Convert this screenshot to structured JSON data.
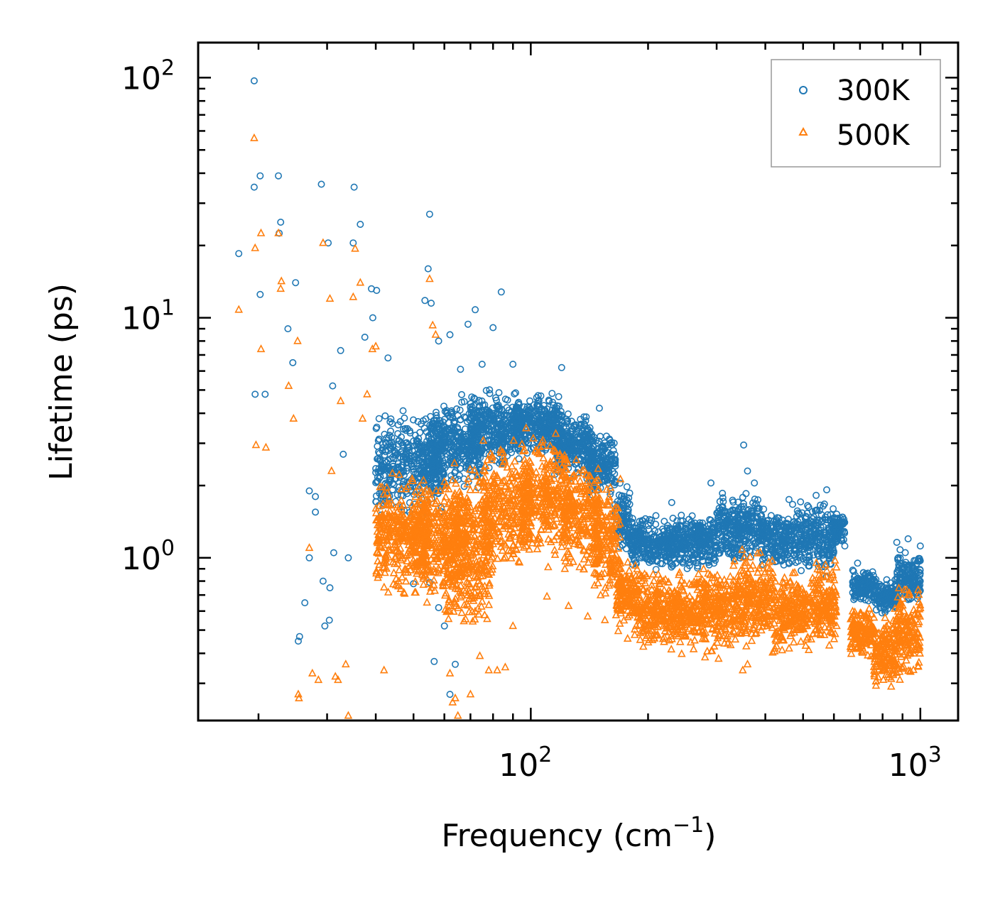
{
  "chart_data": {
    "type": "scatter",
    "title": "",
    "xlabel": "Frequency (cm",
    "xlabel_sup": "−1",
    "xlabel_tail": ")",
    "ylabel": "Lifetime (ps)",
    "xscale": "log",
    "yscale": "log",
    "xlim": [
      14,
      1250
    ],
    "ylim": [
      0.21,
      140
    ],
    "x_ticks": [
      {
        "value": 100,
        "base": "10",
        "exp": "2"
      },
      {
        "value": 1000,
        "base": "10",
        "exp": "3"
      }
    ],
    "y_ticks": [
      {
        "value": 1,
        "base": "10",
        "exp": "0"
      },
      {
        "value": 10,
        "base": "10",
        "exp": "1"
      },
      {
        "value": 100,
        "base": "10",
        "exp": "2"
      }
    ],
    "legend": {
      "position": "top-right",
      "entries": [
        "300K",
        "500K"
      ]
    },
    "series": [
      {
        "name": "300K",
        "color": "#1f77b4",
        "marker": "circle-open",
        "points": [
          [
            17.8,
            18.5
          ],
          [
            19.5,
            97
          ],
          [
            19.5,
            35
          ],
          [
            20.2,
            39
          ],
          [
            20.2,
            12.5
          ],
          [
            19.6,
            4.8
          ],
          [
            20.8,
            4.8
          ],
          [
            22.5,
            39
          ],
          [
            22.8,
            25
          ],
          [
            22.6,
            22.5
          ],
          [
            23.8,
            9
          ],
          [
            24.5,
            6.5
          ],
          [
            24.9,
            14
          ],
          [
            26.3,
            0.65
          ],
          [
            25.3,
            0.45
          ],
          [
            25.5,
            0.47
          ],
          [
            27,
            1.9
          ],
          [
            27,
            1.0
          ],
          [
            28,
            1.8
          ],
          [
            28,
            1.55
          ],
          [
            29,
            36
          ],
          [
            29.3,
            0.8
          ],
          [
            29.6,
            0.52
          ],
          [
            30.2,
            20.5
          ],
          [
            30.5,
            0.75
          ],
          [
            30.4,
            0.55
          ],
          [
            31,
            5.2
          ],
          [
            31.2,
            1.05
          ],
          [
            32.5,
            7.3
          ],
          [
            33,
            2.7
          ],
          [
            34,
            1.0
          ],
          [
            35.2,
            35
          ],
          [
            35,
            20.5
          ],
          [
            36.5,
            24.5
          ],
          [
            37.5,
            8.3
          ],
          [
            39,
            13.2
          ],
          [
            39.3,
            10.0
          ],
          [
            40.2,
            13
          ],
          [
            43,
            6.8
          ],
          [
            47,
            4.1
          ],
          [
            55,
            27
          ],
          [
            54.5,
            16
          ],
          [
            53.5,
            11.8
          ],
          [
            55.5,
            11.5
          ],
          [
            58,
            8.0
          ],
          [
            62,
            8.5
          ],
          [
            66,
            6.1
          ],
          [
            69,
            9.4
          ],
          [
            72,
            10.8
          ],
          [
            75,
            6.4
          ],
          [
            80,
            9.1
          ],
          [
            84,
            12.8
          ],
          [
            90,
            6.4
          ],
          [
            56.5,
            0.37
          ],
          [
            58,
            0.62
          ],
          [
            60,
            0.52
          ],
          [
            62,
            0.27
          ],
          [
            64,
            0.36
          ],
          [
            55,
            0.79
          ],
          [
            50,
            0.78
          ],
          [
            120,
            6.2
          ],
          [
            150,
            4.2
          ],
          [
            163,
            2.8
          ],
          [
            230,
            1.7
          ],
          [
            290,
            2.05
          ],
          [
            352,
            2.95
          ],
          [
            360,
            2.3
          ],
          [
            375,
            2.05
          ],
          [
            460,
            1.75
          ],
          [
            470,
            1.67
          ],
          [
            540,
            1.82
          ],
          [
            575,
            1.92
          ],
          [
            610,
            1.52
          ],
          [
            640,
            1.12
          ],
          [
            690,
            0.95
          ],
          [
            870,
            1.16
          ],
          [
            930,
            1.2
          ],
          [
            1000,
            1.12
          ]
        ],
        "bands": [
          {
            "x": [
              40,
              60
            ],
            "y": [
              1.4,
              4.2
            ]
          },
          {
            "x": [
              55,
              75
            ],
            "y": [
              1.8,
              5.0
            ]
          },
          {
            "x": [
              70,
              95
            ],
            "y": [
              2.2,
              5.3
            ]
          },
          {
            "x": [
              90,
              120
            ],
            "y": [
              2.5,
              5.2
            ]
          },
          {
            "x": [
              115,
              145
            ],
            "y": [
              2.0,
              4.4
            ]
          },
          {
            "x": [
              140,
              165
            ],
            "y": [
              1.6,
              3.6
            ]
          },
          {
            "x": [
              165,
              180
            ],
            "y": [
              1.0,
              2.2
            ]
          },
          {
            "x": [
              180,
              230
            ],
            "y": [
              0.85,
              1.55
            ]
          },
          {
            "x": [
              230,
              300
            ],
            "y": [
              0.85,
              1.6
            ]
          },
          {
            "x": [
              300,
              390
            ],
            "y": [
              0.9,
              2.0
            ]
          },
          {
            "x": [
              390,
              480
            ],
            "y": [
              0.85,
              1.7
            ]
          },
          {
            "x": [
              480,
              600
            ],
            "y": [
              0.8,
              1.85
            ]
          },
          {
            "x": [
              600,
              640
            ],
            "y": [
              1.1,
              1.6
            ]
          },
          {
            "x": [
              670,
              770
            ],
            "y": [
              0.62,
              0.92
            ]
          },
          {
            "x": [
              770,
              870
            ],
            "y": [
              0.56,
              0.85
            ]
          },
          {
            "x": [
              870,
              1000
            ],
            "y": [
              0.62,
              1.1
            ]
          }
        ]
      },
      {
        "name": "500K",
        "color": "#ff7f0e",
        "marker": "triangle-open",
        "points": [
          [
            17.8,
            10.8
          ],
          [
            19.5,
            56
          ],
          [
            19.6,
            19.5
          ],
          [
            19.7,
            2.95
          ],
          [
            20.3,
            22.5
          ],
          [
            20.3,
            7.4
          ],
          [
            20.9,
            2.88
          ],
          [
            22.5,
            22.5
          ],
          [
            22.9,
            14.2
          ],
          [
            22.8,
            13.2
          ],
          [
            23.9,
            5.2
          ],
          [
            24.6,
            3.8
          ],
          [
            25.2,
            8.0
          ],
          [
            25.3,
            0.27
          ],
          [
            25.4,
            0.26
          ],
          [
            27,
            1.1
          ],
          [
            27.5,
            0.33
          ],
          [
            28.5,
            0.31
          ],
          [
            29.3,
            20.5
          ],
          [
            30.5,
            12
          ],
          [
            30.8,
            2.3
          ],
          [
            31.5,
            0.32
          ],
          [
            32,
            0.31
          ],
          [
            32.5,
            4.5
          ],
          [
            33.5,
            0.36
          ],
          [
            34,
            0.22
          ],
          [
            35,
            12.2
          ],
          [
            35.4,
            19.4
          ],
          [
            36.5,
            14
          ],
          [
            37,
            3.8
          ],
          [
            38,
            4.8
          ],
          [
            39.2,
            7.4
          ],
          [
            40,
            7.6
          ],
          [
            42,
            0.34
          ],
          [
            55,
            14.5
          ],
          [
            57,
            8.5
          ],
          [
            56,
            9.3
          ],
          [
            62,
            0.33
          ],
          [
            63,
            0.25
          ],
          [
            64,
            0.26
          ],
          [
            65,
            0.22
          ],
          [
            70,
            0.27
          ],
          [
            74,
            0.39
          ],
          [
            78,
            0.34
          ],
          [
            82,
            0.34
          ],
          [
            86,
            0.35
          ],
          [
            90,
            0.52
          ],
          [
            110,
            0.69
          ],
          [
            125,
            0.63
          ],
          [
            140,
            0.57
          ],
          [
            155,
            0.55
          ],
          [
            350,
            0.34
          ],
          [
            360,
            0.36
          ]
        ],
        "bands": [
          {
            "x": [
              40,
              55
            ],
            "y": [
              0.65,
              2.4
            ]
          },
          {
            "x": [
              50,
              70
            ],
            "y": [
              0.55,
              2.7
            ]
          },
          {
            "x": [
              60,
              80
            ],
            "y": [
              0.4,
              2.6
            ]
          },
          {
            "x": [
              75,
              100
            ],
            "y": [
              0.8,
              3.4
            ]
          },
          {
            "x": [
              95,
              125
            ],
            "y": [
              0.85,
              3.8
            ]
          },
          {
            "x": [
              120,
              150
            ],
            "y": [
              0.75,
              3.0
            ]
          },
          {
            "x": [
              145,
              170
            ],
            "y": [
              0.6,
              2.3
            ]
          },
          {
            "x": [
              165,
              190
            ],
            "y": [
              0.45,
              1.05
            ]
          },
          {
            "x": [
              190,
              260
            ],
            "y": [
              0.38,
              0.95
            ]
          },
          {
            "x": [
              260,
              330
            ],
            "y": [
              0.37,
              1.0
            ]
          },
          {
            "x": [
              330,
              420
            ],
            "y": [
              0.38,
              1.15
            ]
          },
          {
            "x": [
              420,
              520
            ],
            "y": [
              0.37,
              0.95
            ]
          },
          {
            "x": [
              520,
              610
            ],
            "y": [
              0.38,
              1.05
            ]
          },
          {
            "x": [
              660,
              760
            ],
            "y": [
              0.36,
              0.65
            ]
          },
          {
            "x": [
              760,
              860
            ],
            "y": [
              0.27,
              0.6
            ]
          },
          {
            "x": [
              860,
              1000
            ],
            "y": [
              0.3,
              0.8
            ]
          }
        ]
      }
    ]
  }
}
